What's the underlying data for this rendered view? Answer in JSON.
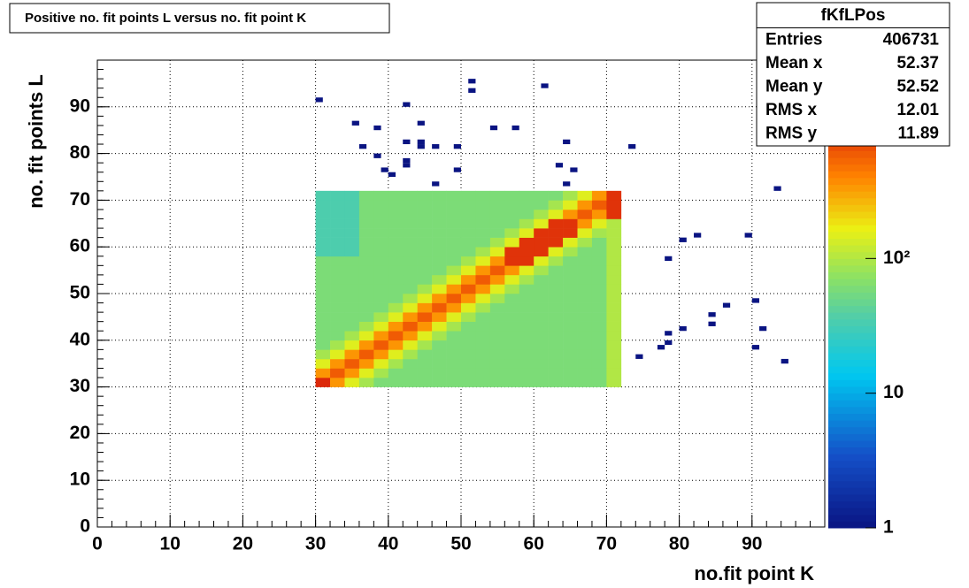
{
  "chart_data": {
    "type": "heatmap2d",
    "title": "Positive no. fit points L versus no. fit point K",
    "x_label": "no.fit point K",
    "y_label": "no. fit points  L",
    "xlim": [
      0,
      100
    ],
    "ylim": [
      0,
      100
    ],
    "xticks": [
      0,
      10,
      20,
      30,
      40,
      50,
      60,
      70,
      80,
      90
    ],
    "yticks": [
      0,
      10,
      20,
      30,
      40,
      50,
      60,
      70,
      80,
      90
    ],
    "zlim": [
      1,
      1000
    ],
    "zscale": "log",
    "zticks": [
      1,
      10,
      {
        "value": 100,
        "label": "10²"
      }
    ],
    "grid": true,
    "x_edges": [
      30,
      32,
      34,
      36,
      38,
      40,
      42,
      44,
      46,
      48,
      50,
      52,
      54,
      56,
      58,
      60,
      62,
      64,
      66,
      68,
      70,
      72
    ],
    "y_edges": [
      30,
      32,
      34,
      36,
      38,
      40,
      42,
      44,
      46,
      48,
      50,
      52,
      54,
      56,
      58,
      60,
      62,
      64,
      66,
      68,
      70,
      72
    ],
    "z": [
      [
        2000,
        350,
        150,
        90,
        60,
        60,
        60,
        60,
        60,
        60,
        60,
        60,
        60,
        60,
        60,
        60,
        60,
        60,
        60,
        60,
        100
      ],
      [
        350,
        600,
        350,
        150,
        90,
        60,
        60,
        60,
        60,
        60,
        60,
        60,
        60,
        60,
        60,
        60,
        60,
        60,
        60,
        60,
        100
      ],
      [
        150,
        350,
        600,
        350,
        150,
        90,
        60,
        60,
        60,
        60,
        60,
        60,
        60,
        60,
        60,
        60,
        60,
        60,
        60,
        60,
        100
      ],
      [
        90,
        150,
        350,
        600,
        350,
        150,
        90,
        60,
        60,
        60,
        60,
        60,
        60,
        60,
        60,
        60,
        60,
        60,
        60,
        60,
        100
      ],
      [
        60,
        90,
        150,
        350,
        600,
        350,
        150,
        90,
        60,
        60,
        60,
        60,
        60,
        60,
        60,
        60,
        60,
        60,
        60,
        60,
        100
      ],
      [
        60,
        60,
        90,
        150,
        350,
        600,
        350,
        150,
        90,
        60,
        60,
        60,
        60,
        60,
        60,
        60,
        60,
        60,
        60,
        60,
        100
      ],
      [
        60,
        60,
        60,
        90,
        150,
        350,
        600,
        350,
        150,
        90,
        60,
        60,
        60,
        60,
        60,
        60,
        60,
        60,
        60,
        60,
        100
      ],
      [
        60,
        60,
        60,
        60,
        90,
        150,
        350,
        600,
        350,
        150,
        90,
        60,
        60,
        60,
        60,
        60,
        60,
        60,
        60,
        60,
        100
      ],
      [
        60,
        60,
        60,
        60,
        60,
        90,
        150,
        350,
        600,
        350,
        150,
        90,
        60,
        60,
        60,
        60,
        60,
        60,
        60,
        60,
        100
      ],
      [
        60,
        60,
        60,
        60,
        60,
        60,
        90,
        150,
        350,
        600,
        350,
        150,
        90,
        60,
        60,
        60,
        60,
        60,
        60,
        60,
        100
      ],
      [
        60,
        60,
        60,
        60,
        60,
        60,
        60,
        90,
        150,
        350,
        600,
        350,
        150,
        90,
        60,
        60,
        60,
        60,
        60,
        60,
        100
      ],
      [
        60,
        60,
        60,
        60,
        60,
        60,
        60,
        60,
        90,
        150,
        350,
        600,
        350,
        150,
        90,
        60,
        60,
        60,
        60,
        60,
        100
      ],
      [
        60,
        60,
        60,
        60,
        60,
        60,
        60,
        60,
        60,
        90,
        150,
        350,
        600,
        350,
        150,
        90,
        60,
        60,
        60,
        60,
        100
      ],
      [
        60,
        60,
        60,
        60,
        60,
        60,
        60,
        60,
        60,
        60,
        90,
        150,
        350,
        900,
        900,
        150,
        90,
        60,
        60,
        60,
        100
      ],
      [
        35,
        35,
        35,
        60,
        60,
        60,
        60,
        60,
        60,
        60,
        60,
        90,
        150,
        900,
        900,
        900,
        150,
        90,
        60,
        60,
        100
      ],
      [
        35,
        35,
        35,
        60,
        60,
        60,
        60,
        60,
        60,
        60,
        60,
        60,
        90,
        150,
        900,
        900,
        900,
        150,
        90,
        60,
        100
      ],
      [
        35,
        35,
        35,
        60,
        60,
        60,
        60,
        60,
        60,
        60,
        60,
        60,
        60,
        90,
        150,
        900,
        900,
        900,
        150,
        90,
        100
      ],
      [
        35,
        35,
        35,
        60,
        60,
        60,
        60,
        60,
        60,
        60,
        60,
        60,
        60,
        60,
        90,
        150,
        900,
        900,
        350,
        150,
        100
      ],
      [
        35,
        35,
        35,
        60,
        60,
        60,
        60,
        60,
        60,
        60,
        60,
        60,
        60,
        60,
        60,
        90,
        150,
        350,
        600,
        350,
        900
      ],
      [
        35,
        35,
        35,
        60,
        60,
        60,
        60,
        60,
        60,
        60,
        60,
        60,
        60,
        60,
        60,
        60,
        90,
        150,
        350,
        600,
        900
      ],
      [
        35,
        35,
        35,
        60,
        60,
        60,
        60,
        60,
        60,
        60,
        60,
        60,
        60,
        60,
        60,
        60,
        60,
        90,
        150,
        350,
        900
      ]
    ],
    "outliers": {
      "x": [
        30,
        35,
        38,
        36,
        38,
        39,
        40,
        42,
        42,
        42,
        42,
        44,
        44,
        44,
        46,
        46,
        49,
        49,
        51,
        51,
        54,
        57,
        61,
        64,
        63,
        65,
        64,
        73,
        93,
        82,
        80,
        89,
        78,
        86,
        90,
        84,
        84,
        80,
        91,
        78,
        78,
        77,
        90,
        74,
        94
      ],
      "y": [
        91,
        86,
        85,
        81,
        79,
        76,
        75,
        90,
        82,
        78,
        77,
        86,
        82,
        81,
        81,
        73,
        81,
        76,
        95,
        93,
        85,
        85,
        94,
        82,
        77,
        76,
        73,
        81,
        72,
        62,
        61,
        62,
        57,
        47,
        48,
        45,
        43,
        42,
        42,
        41,
        39,
        38,
        38,
        36,
        35
      ],
      "values": [
        1,
        1,
        1,
        1,
        1,
        1,
        1,
        1,
        1,
        1,
        1,
        1,
        1,
        1,
        1,
        1,
        1,
        1,
        1,
        1,
        1,
        1,
        1,
        1,
        1,
        1,
        1,
        1,
        1,
        1,
        1,
        1,
        1,
        1,
        1,
        1,
        1,
        1,
        1,
        1,
        1,
        1,
        1,
        1,
        1
      ]
    },
    "stats_title": "fKfLPos",
    "stats": [
      {
        "name": "Entries",
        "value": 406731
      },
      {
        "name": "Mean x",
        "value": 52.37
      },
      {
        "name": "Mean y",
        "value": 52.52
      },
      {
        "name": "RMS x",
        "value": 12.01
      },
      {
        "name": "RMS y",
        "value": 11.89
      }
    ]
  }
}
